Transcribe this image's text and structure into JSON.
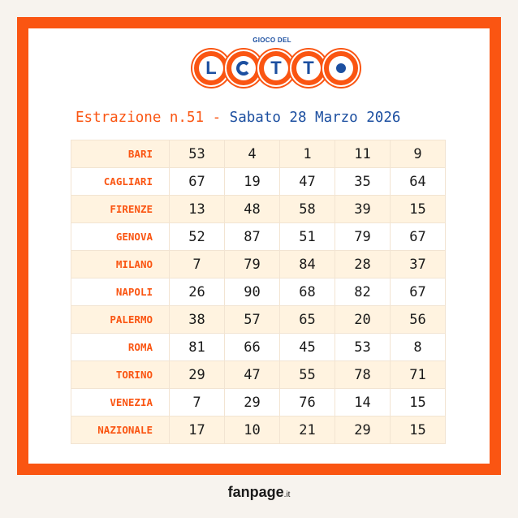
{
  "logo": {
    "top_text": "GIOCO DEL",
    "letters": [
      "L",
      "O",
      "T",
      "T",
      "O"
    ]
  },
  "header": {
    "estrazione": "Estrazione n.51 -",
    "date": "Sabato 28 Marzo 2026"
  },
  "draws": [
    {
      "city": "BARI",
      "numbers": [
        "53",
        "4",
        "1",
        "11",
        "9"
      ]
    },
    {
      "city": "CAGLIARI",
      "numbers": [
        "67",
        "19",
        "47",
        "35",
        "64"
      ]
    },
    {
      "city": "FIRENZE",
      "numbers": [
        "13",
        "48",
        "58",
        "39",
        "15"
      ]
    },
    {
      "city": "GENOVA",
      "numbers": [
        "52",
        "87",
        "51",
        "79",
        "67"
      ]
    },
    {
      "city": "MILANO",
      "numbers": [
        "7",
        "79",
        "84",
        "28",
        "37"
      ]
    },
    {
      "city": "NAPOLI",
      "numbers": [
        "26",
        "90",
        "68",
        "82",
        "67"
      ]
    },
    {
      "city": "PALERMO",
      "numbers": [
        "38",
        "57",
        "65",
        "20",
        "56"
      ]
    },
    {
      "city": "ROMA",
      "numbers": [
        "81",
        "66",
        "45",
        "53",
        "8"
      ]
    },
    {
      "city": "TORINO",
      "numbers": [
        "29",
        "47",
        "55",
        "78",
        "71"
      ]
    },
    {
      "city": "VENEZIA",
      "numbers": [
        "7",
        "29",
        "76",
        "14",
        "15"
      ]
    },
    {
      "city": "NAZIONALE",
      "numbers": [
        "17",
        "10",
        "21",
        "29",
        "15"
      ]
    }
  ],
  "footer": {
    "brand": "fanpage",
    "tld": ".it"
  },
  "colors": {
    "accent_orange": "#fa5512",
    "brand_blue": "#1c4fa0",
    "row_tint": "#fff3e0"
  }
}
